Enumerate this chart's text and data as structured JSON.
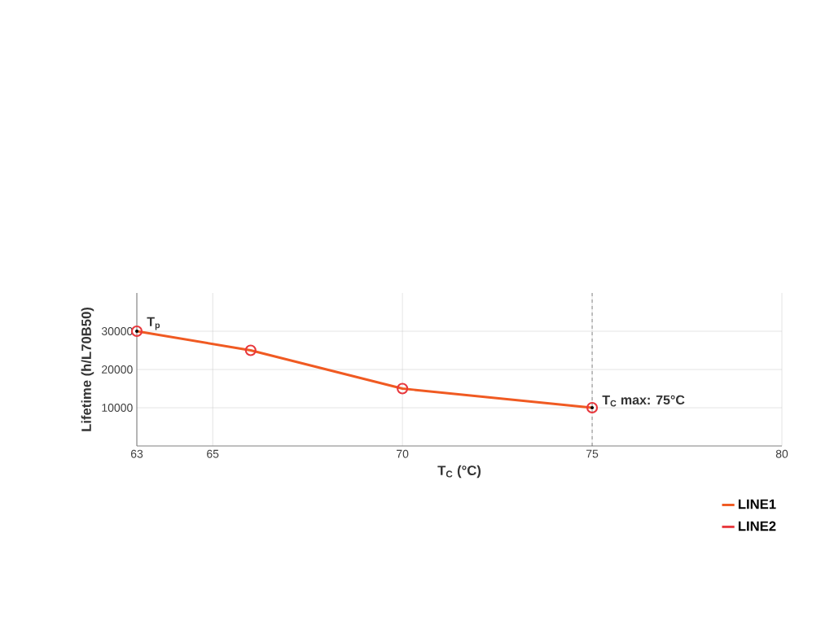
{
  "chart_data": {
    "type": "line",
    "xlabel": "T$_{C}$ (°C)",
    "ylabel": "Lifetime (h/L70B50)",
    "x": [
      63,
      66,
      70,
      75
    ],
    "series": [
      {
        "name": "LINE1",
        "color": "#f05a22",
        "values": [
          30000,
          25000,
          15000,
          10000
        ]
      },
      {
        "name": "LINE2",
        "type": "scatter",
        "color": "#e8383d",
        "marker": "circle",
        "values": [
          30000,
          25000,
          15000,
          10000
        ]
      }
    ],
    "xlim": [
      63,
      80
    ],
    "xticks": [
      63,
      65,
      70,
      75,
      80
    ],
    "ylim": [
      0,
      40000
    ],
    "yticks": [
      10000,
      20000,
      30000
    ],
    "grid": true,
    "legend": "bottom right",
    "ref_lines": [
      {
        "axis": "x",
        "value": 75,
        "line_style": "dashed",
        "color": "#333333"
      }
    ],
    "annotations": [
      {
        "text": "T$_{p}$",
        "x": 63,
        "y": 30000
      },
      {
        "text": "T$_{C}$ max: 75°C",
        "x": 75,
        "y": 10000
      }
    ]
  }
}
